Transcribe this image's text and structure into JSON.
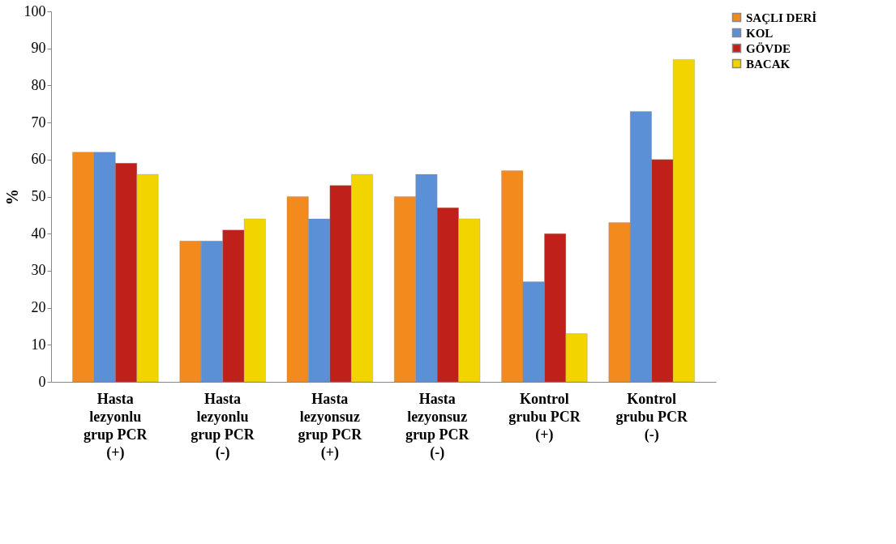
{
  "chart_data": {
    "type": "bar",
    "ylabel": "%",
    "categories": [
      "Hasta lezyonlu grup PCR (+)",
      "Hasta lezyonlu grup PCR (-)",
      "Hasta lezyonsuz grup PCR (+)",
      "Hasta lezyonsuz grup PCR (-)",
      "Kontrol grubu PCR (+)",
      "Kontrol grubu PCR (-)"
    ],
    "series": [
      {
        "name": "SAÇLI DERİ",
        "color": "#f28a1e",
        "values": [
          62,
          38,
          50,
          50,
          57,
          43
        ]
      },
      {
        "name": "KOL",
        "color": "#5b8fd6",
        "values": [
          62,
          38,
          44,
          56,
          27,
          73
        ]
      },
      {
        "name": "GÖVDE",
        "color": "#c0201a",
        "values": [
          59,
          41,
          53,
          47,
          40,
          60
        ]
      },
      {
        "name": "BACAK",
        "color": "#f2d400",
        "values": [
          56,
          44,
          56,
          44,
          13,
          87
        ]
      }
    ],
    "ylim": [
      0,
      100
    ],
    "yticks": [
      0,
      10,
      20,
      30,
      40,
      50,
      60,
      70,
      80,
      90,
      100
    ],
    "grid": false,
    "legend": "right"
  }
}
